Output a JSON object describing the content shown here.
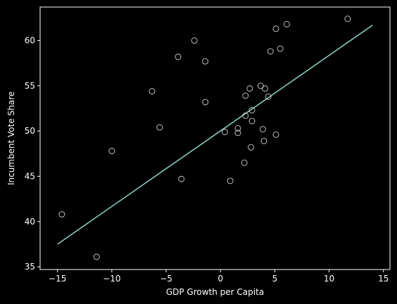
{
  "chart_data": {
    "type": "scatter",
    "xlabel": "GDP Growth per Capita",
    "ylabel": "Incumbent Vote Share",
    "xlim": [
      -16.6,
      15.6
    ],
    "ylim": [
      34.7,
      63.7
    ],
    "xticks": [
      -15,
      -10,
      -5,
      0,
      5,
      10,
      15
    ],
    "yticks": [
      35,
      40,
      45,
      50,
      55,
      60
    ],
    "grid": false,
    "legend": "none",
    "colors": {
      "background": "#000000",
      "axes": "#ffffff",
      "marker_edge": "#cfcfcf",
      "fit_line": "#8dd3c7"
    },
    "points": [
      {
        "x": -14.6,
        "y": 40.8
      },
      {
        "x": -11.4,
        "y": 36.1
      },
      {
        "x": -10.0,
        "y": 47.8
      },
      {
        "x": -6.3,
        "y": 54.4
      },
      {
        "x": -5.6,
        "y": 50.4
      },
      {
        "x": -3.9,
        "y": 58.2
      },
      {
        "x": -3.6,
        "y": 44.7
      },
      {
        "x": -2.4,
        "y": 60.0
      },
      {
        "x": -1.4,
        "y": 57.7
      },
      {
        "x": -1.4,
        "y": 53.2
      },
      {
        "x": 0.4,
        "y": 49.9
      },
      {
        "x": 0.9,
        "y": 44.5
      },
      {
        "x": 1.6,
        "y": 49.8
      },
      {
        "x": 1.6,
        "y": 50.3
      },
      {
        "x": 2.2,
        "y": 46.5
      },
      {
        "x": 2.3,
        "y": 51.7
      },
      {
        "x": 2.3,
        "y": 53.9
      },
      {
        "x": 2.7,
        "y": 54.7
      },
      {
        "x": 2.8,
        "y": 48.2
      },
      {
        "x": 2.9,
        "y": 51.1
      },
      {
        "x": 2.9,
        "y": 52.3
      },
      {
        "x": 3.7,
        "y": 55.0
      },
      {
        "x": 3.9,
        "y": 50.2
      },
      {
        "x": 4.0,
        "y": 48.9
      },
      {
        "x": 4.1,
        "y": 54.7
      },
      {
        "x": 4.4,
        "y": 53.8
      },
      {
        "x": 4.6,
        "y": 58.8
      },
      {
        "x": 5.1,
        "y": 61.3
      },
      {
        "x": 5.1,
        "y": 49.6
      },
      {
        "x": 5.5,
        "y": 59.1
      },
      {
        "x": 6.1,
        "y": 61.8
      },
      {
        "x": 11.7,
        "y": 62.4
      }
    ],
    "fit_line": {
      "x": [
        -15,
        14
      ],
      "y": [
        37.5,
        61.7
      ]
    }
  }
}
